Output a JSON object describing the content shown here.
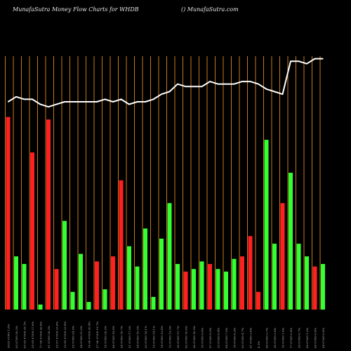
{
  "header": {
    "title": "MunafaSutra  Money Flow  Charts for WHDB",
    "site": "() MunafaSutra.com"
  },
  "chart_data": {
    "type": "bar",
    "title": "MunafaSutra  Money Flow  Charts for WHDB",
    "xlabel": "",
    "ylabel": "",
    "ylim": [
      0,
      100
    ],
    "grid": true,
    "legend": "none",
    "categories": [
      "2025 07/09 1.8%",
      "03 07/09 30.3%",
      "03 03 07/09 29.1%",
      "25 05 07/09 27.0%",
      "17 08 07/09 26.8%",
      "01 07/09 28.3%",
      "25 07 07/09 25.6%",
      "13 05 07/09 23.9%",
      "25 07/09 24.5%",
      "24 07/09 21.2%",
      "16 06 07/09 20.4%",
      "27 06 07/09 19.7%",
      "16 07/09 20.3%",
      "08 07/09 19.9%",
      "28 07/09 18.7%",
      "21 07/09 17.3%",
      "24 07/09 16.5%",
      "23 07/09 16.1%",
      "15 07/09 14.1%",
      "18 07/09 13.4%",
      "12 07/09 13.3%",
      "30 07/09 11.7%",
      "02 07/09 10.8%",
      "26 07/09 10.5%",
      "10 07/09 9.9%",
      "07 07/09 9.3%",
      "25 07/09 8.4%",
      "04 07/09 7.5%",
      "18 07/09 6.3%",
      "03 07/09 4.7%",
      "01 07/09 3.6%",
      "4.1%",
      "08 07/09 3.7%",
      "30 07/09 2.8%",
      "16 07/09 1.9%",
      "17 07/09 0.9%",
      "28 07/09 0.7%",
      "09 07/09 1.2%",
      "08 07/09 0.8%",
      "24 07/09 0.6%"
    ],
    "series": [
      {
        "type": "bar",
        "values": [
          76,
          21,
          18,
          62,
          2,
          75,
          16,
          35,
          7,
          22,
          3,
          19,
          8,
          21,
          51,
          25,
          17,
          32,
          5,
          28,
          42,
          18,
          15,
          16,
          19,
          18,
          16,
          15,
          20,
          21,
          29,
          7,
          67,
          26,
          42,
          54,
          26,
          21,
          17,
          18
        ],
        "colors": [
          "#ff2020",
          "#33ff33",
          "#33ff33",
          "#ff2020",
          "#33ff33",
          "#ff2020",
          "#ff2020",
          "#33ff33",
          "#33ff33",
          "#33ff33",
          "#33ff33",
          "#ff2020",
          "#33ff33",
          "#ff2020",
          "#ff2020",
          "#33ff33",
          "#33ff33",
          "#33ff33",
          "#33ff33",
          "#33ff33",
          "#33ff33",
          "#33ff33",
          "#ff2020",
          "#33ff33",
          "#33ff33",
          "#ff2020",
          "#33ff33",
          "#33ff33",
          "#33ff33",
          "#ff2020",
          "#ff2020",
          "#ff2020",
          "#33ff33",
          "#33ff33",
          "#ff2020",
          "#33ff33",
          "#33ff33",
          "#33ff33",
          "#ff2020",
          "#33ff33"
        ]
      },
      {
        "type": "line",
        "color": "#ffffff",
        "values": [
          82,
          84,
          83,
          83,
          81,
          80,
          81,
          82,
          82,
          82,
          82,
          82,
          83,
          82,
          83,
          81,
          82,
          82,
          83,
          85,
          86,
          89,
          88,
          88,
          88,
          90,
          89,
          89,
          89,
          90,
          90,
          89,
          87,
          86,
          85,
          98,
          98,
          97,
          99,
          99
        ]
      }
    ],
    "colors": {
      "background": "#000000",
      "grid": "#c87a16",
      "inflow": "#33ff33",
      "outflow": "#ff2020",
      "line": "#ffffff"
    }
  }
}
